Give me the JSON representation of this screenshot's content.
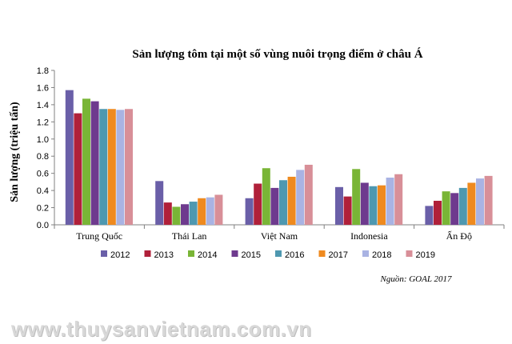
{
  "chart_data": {
    "type": "bar",
    "title": "Sản lượng tôm tại một số vùng nuôi trọng điểm ở châu Á",
    "ylabel": "Sản lượng (triệu tấn)",
    "xlabel": "",
    "ylim": [
      0,
      1.8
    ],
    "yticks": [
      "0.0",
      "0.2",
      "0.4",
      "0.6",
      "0.8",
      "1.0",
      "1.2",
      "1.4",
      "1.6",
      "1.8"
    ],
    "grid": false,
    "legend_position": "bottom",
    "categories": [
      "Trung Quốc",
      "Thái Lan",
      "Việt Nam",
      "Indonesia",
      "Ấn Độ"
    ],
    "series": [
      {
        "name": "2012",
        "color": "#6a5fa8",
        "values": [
          1.57,
          0.51,
          0.31,
          0.44,
          0.22
        ]
      },
      {
        "name": "2013",
        "color": "#b0203a",
        "values": [
          1.3,
          0.26,
          0.48,
          0.33,
          0.28
        ]
      },
      {
        "name": "2014",
        "color": "#79b536",
        "values": [
          1.47,
          0.21,
          0.66,
          0.65,
          0.39
        ]
      },
      {
        "name": "2015",
        "color": "#6e3a8e",
        "values": [
          1.44,
          0.24,
          0.43,
          0.49,
          0.37
        ]
      },
      {
        "name": "2016",
        "color": "#4e98b0",
        "values": [
          1.35,
          0.27,
          0.52,
          0.45,
          0.43
        ]
      },
      {
        "name": "2017",
        "color": "#ef8a1f",
        "values": [
          1.35,
          0.31,
          0.56,
          0.46,
          0.49
        ]
      },
      {
        "name": "2018",
        "color": "#a9b3e3",
        "values": [
          1.34,
          0.32,
          0.64,
          0.55,
          0.54
        ]
      },
      {
        "name": "2019",
        "color": "#d88f98",
        "values": [
          1.35,
          0.35,
          0.7,
          0.59,
          0.57
        ]
      }
    ],
    "source_note": "Nguồn: GOAL 2017"
  },
  "watermark": "www.thuysanvietnam.com.vn"
}
